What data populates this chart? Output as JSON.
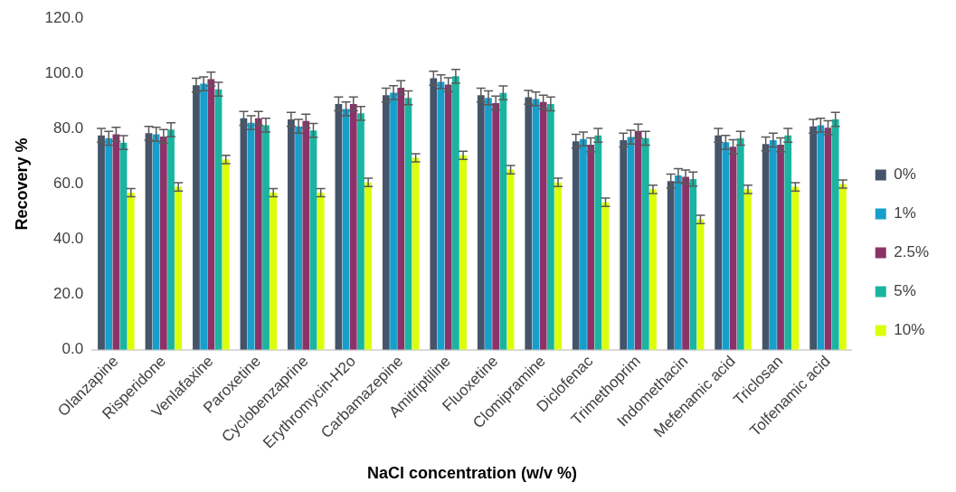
{
  "chart_data": {
    "type": "bar",
    "xlabel": "NaCl concentration (w/v %)",
    "ylabel": "Recovery %",
    "categories": [
      "Olanzapine",
      "Risperidone",
      "Venlafaxine",
      "Paroxetine",
      "Cyclobenzaprine",
      "Erythromycin-H2o",
      "Carbamazepine",
      "Amitriptiline",
      "Fluoxetine",
      "Clomipramine",
      "Diclofenac",
      "Trimethoprim",
      "Indomethacin",
      "Mefenamic acid",
      "Triclosan",
      "Tolfenamic acid"
    ],
    "series": [
      {
        "name": "0%",
        "color": "#44546a",
        "values": [
          77.6,
          78.4,
          95.8,
          83.8,
          83.4,
          89,
          92.2,
          98.3,
          92.2,
          91.4,
          75.5,
          75.9,
          61.1,
          77.6,
          74.5,
          80.9
        ],
        "errors": [
          2.5,
          2.5,
          2.5,
          2.5,
          2.5,
          2.5,
          2.5,
          2.5,
          2.5,
          2.5,
          2.5,
          2.5,
          2.5,
          2.5,
          2.5,
          2.5
        ]
      },
      {
        "name": "1%",
        "color": "#179fcc",
        "values": [
          76.6,
          78,
          96.3,
          82.2,
          80.9,
          87.2,
          93.1,
          97,
          91.2,
          90.8,
          76.3,
          77,
          63.1,
          75.1,
          75.9,
          81.3
        ],
        "errors": [
          2.5,
          2.5,
          2.5,
          2.5,
          2.5,
          2.5,
          2.5,
          2.5,
          2.5,
          2.5,
          2.5,
          2.5,
          2.5,
          2.5,
          2.5,
          2.5
        ]
      },
      {
        "name": "2.5%",
        "color": "#8b3369",
        "values": [
          78,
          77.2,
          98,
          83.8,
          82.8,
          89,
          94.9,
          96,
          89.3,
          89.7,
          74.2,
          79.2,
          62.6,
          73.5,
          74.2,
          80.4
        ],
        "errors": [
          2.5,
          2.5,
          2.5,
          2.5,
          2.5,
          2.5,
          2.5,
          2.5,
          2.5,
          2.5,
          2.5,
          2.5,
          2.5,
          2.5,
          2.5,
          2.5
        ]
      },
      {
        "name": "5%",
        "color": "#1ab5a0",
        "values": [
          75,
          79.7,
          94.3,
          81.3,
          79.4,
          85.6,
          91.2,
          99,
          93,
          89,
          77.6,
          76.6,
          61.8,
          76.6,
          77.6,
          83.4
        ],
        "errors": [
          2.5,
          2.5,
          2.5,
          2.5,
          2.5,
          2.5,
          2.5,
          2.5,
          2.5,
          2.5,
          2.5,
          2.5,
          2.5,
          2.5,
          2.5,
          2.5
        ]
      },
      {
        "name": "10%",
        "color": "#dbff0a",
        "values": [
          56.9,
          59,
          68.9,
          56.9,
          56.9,
          60.6,
          69.5,
          70.4,
          65.2,
          60.6,
          53.4,
          58.1,
          47.2,
          58.1,
          59,
          60
        ],
        "errors": [
          1.5,
          1.5,
          1.5,
          1.5,
          1.5,
          1.5,
          1.5,
          1.5,
          1.5,
          1.5,
          1.5,
          1.5,
          1.5,
          1.5,
          1.5,
          1.5
        ]
      }
    ],
    "ylim": [
      0,
      120
    ],
    "yticks": [
      {
        "value": 0,
        "label": "0.0"
      },
      {
        "value": 20,
        "label": "20.0"
      },
      {
        "value": 40,
        "label": "40.0"
      },
      {
        "value": 60,
        "label": "60.0"
      },
      {
        "value": 80,
        "label": "80.0"
      },
      {
        "value": 100,
        "label": "100.0"
      },
      {
        "value": 120,
        "label": "120.0"
      }
    ],
    "grid": false,
    "legend": "right"
  }
}
